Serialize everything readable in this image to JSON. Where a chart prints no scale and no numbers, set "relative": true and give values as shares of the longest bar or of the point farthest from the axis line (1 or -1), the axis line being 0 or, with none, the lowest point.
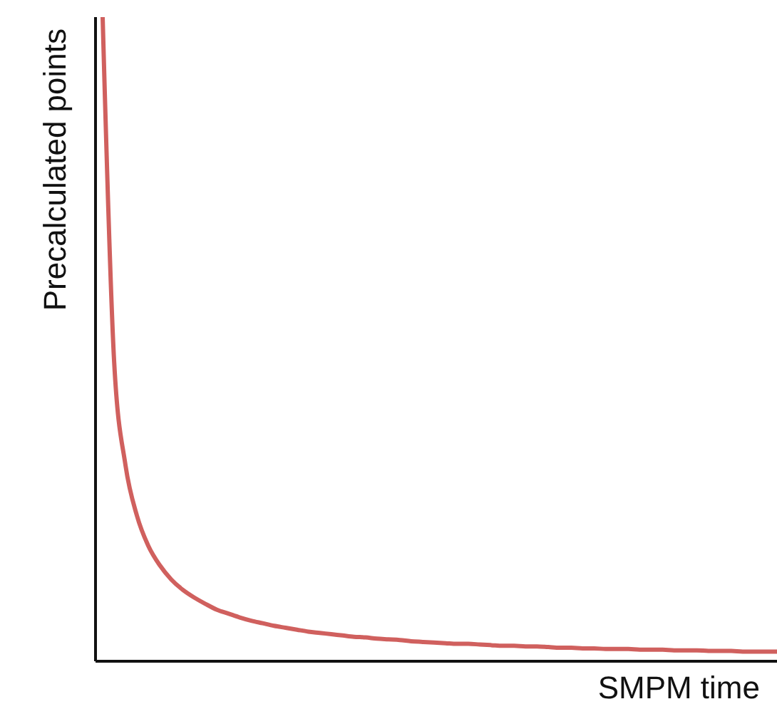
{
  "chart_data": {
    "type": "line",
    "relative": true,
    "xlabel": "SMPM time",
    "ylabel": "Precalculated points",
    "categories": [
      null,
      null,
      null,
      null,
      null,
      null,
      null,
      null,
      null,
      null,
      null,
      null,
      null,
      null,
      null,
      null,
      null,
      null,
      null,
      null,
      null,
      null,
      null,
      null,
      null,
      null,
      null,
      null,
      null,
      null,
      null,
      null,
      null,
      null,
      null,
      null,
      null,
      null,
      null,
      null,
      null,
      null,
      null,
      null,
      null,
      null,
      null,
      null,
      null,
      null,
      null,
      null,
      null,
      null,
      null,
      null,
      null,
      null,
      null,
      null
    ],
    "series": [
      {
        "color": "#d0605e",
        "values": [
          1,
          0.467,
          0.304,
          0.226,
          0.179,
          0.149,
          0.127,
          0.111,
          0.099,
          0.089,
          0.08,
          0.074,
          0.068,
          0.063,
          0.059,
          0.055,
          0.052,
          0.049,
          0.046,
          0.044,
          0.042,
          0.04,
          0.038,
          0.037,
          0.035,
          0.034,
          0.033,
          0.031,
          0.03,
          0.029,
          0.028,
          0.027,
          0.027,
          0.026,
          0.025,
          0.024,
          0.024,
          0.023,
          0.023,
          0.022,
          0.021,
          0.021,
          0.02,
          0.02,
          0.019,
          0.019,
          0.019,
          0.018,
          0.018,
          0.018,
          0.017,
          0.017,
          0.017,
          0.016,
          0.016,
          0.016,
          0.015,
          0.015,
          0.015,
          0.015
        ]
      }
    ],
    "grid": false,
    "legend": false,
    "marker": "none",
    "line_style": "solid"
  }
}
